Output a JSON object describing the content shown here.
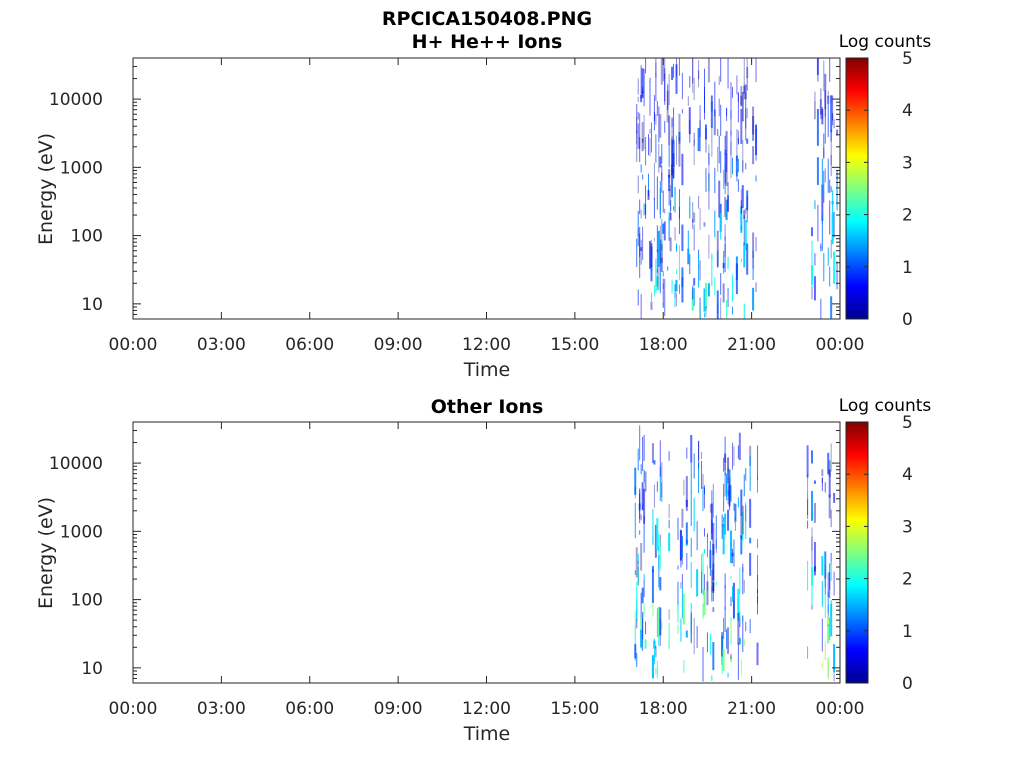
{
  "figure": {
    "file_title": "RPCICA150408.PNG"
  },
  "chart_data": [
    {
      "type": "heatmap",
      "title": "H+ He++ Ions",
      "xlabel": "Time",
      "ylabel": "Energy (eV)",
      "x_ticks": [
        "00:00",
        "03:00",
        "06:00",
        "09:00",
        "12:00",
        "15:00",
        "18:00",
        "21:00",
        "00:00"
      ],
      "xlim_hours": [
        0,
        24
      ],
      "y_scale": "log",
      "y_ticks": [
        10,
        100,
        1000,
        10000
      ],
      "y_tick_labels": [
        "10",
        "100",
        "1000",
        "10000"
      ],
      "ylim": [
        6,
        40000
      ],
      "colorbar": {
        "label": "Log counts",
        "range": [
          0,
          5
        ],
        "ticks": [
          "0",
          "1",
          "2",
          "3",
          "4",
          "5"
        ],
        "colormap": "jet"
      },
      "activity_intervals_hours": [
        [
          17.05,
          21.25
        ],
        [
          22.9,
          23.95
        ]
      ],
      "peak_log_counts": 2.3,
      "energy_band_eV": [
        6,
        25000
      ]
    },
    {
      "type": "heatmap",
      "title": "Other Ions",
      "xlabel": "Time",
      "ylabel": "Energy (eV)",
      "x_ticks": [
        "00:00",
        "03:00",
        "06:00",
        "09:00",
        "12:00",
        "15:00",
        "18:00",
        "21:00",
        "00:00"
      ],
      "xlim_hours": [
        0,
        24
      ],
      "y_scale": "log",
      "y_ticks": [
        10,
        100,
        1000,
        10000
      ],
      "y_tick_labels": [
        "10",
        "100",
        "1000",
        "10000"
      ],
      "ylim": [
        6,
        40000
      ],
      "colorbar": {
        "label": "Log counts",
        "range": [
          0,
          5
        ],
        "ticks": [
          "0",
          "1",
          "2",
          "3",
          "4",
          "5"
        ],
        "colormap": "jet"
      },
      "activity_intervals_hours": [
        [
          17.05,
          21.25
        ],
        [
          22.9,
          23.95
        ]
      ],
      "peak_log_counts": 3.2,
      "energy_band_eV": [
        6,
        12000
      ]
    }
  ]
}
